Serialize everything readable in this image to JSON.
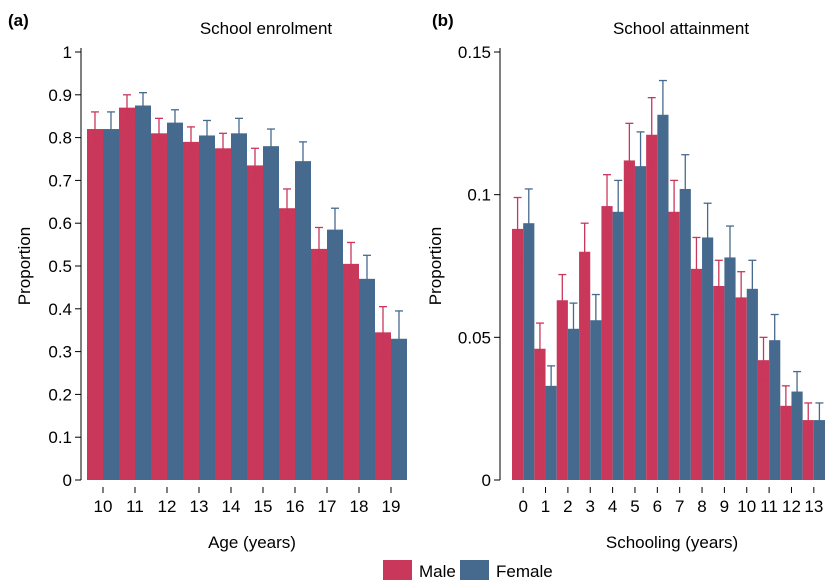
{
  "colors": {
    "male": "#c9375b",
    "female": "#466a8e",
    "axis": "#000000"
  },
  "legend": [
    {
      "name": "Male",
      "color": "#c9375b"
    },
    {
      "name": "Female",
      "color": "#466a8e"
    }
  ],
  "chart_data": [
    {
      "type": "bar",
      "panel_label": "(a)",
      "title": "School enrolment",
      "xlabel": "Age (years)",
      "ylabel": "Proportion",
      "ylim": [
        0,
        1
      ],
      "yticks": [
        "0",
        "0.1",
        "0.2",
        "0.3",
        "0.4",
        "0.5",
        "0.6",
        "0.7",
        "0.8",
        "0.9",
        "1"
      ],
      "yticks_values": [
        0,
        0.1,
        0.2,
        0.3,
        0.4,
        0.5,
        0.6,
        0.7,
        0.8,
        0.9,
        1
      ],
      "categories": [
        "10",
        "11",
        "12",
        "13",
        "14",
        "15",
        "16",
        "17",
        "18",
        "19"
      ],
      "series": [
        {
          "name": "Male",
          "values": [
            0.82,
            0.87,
            0.81,
            0.79,
            0.775,
            0.735,
            0.635,
            0.54,
            0.505,
            0.345
          ],
          "ci_low": [
            0.78,
            0.835,
            0.775,
            0.755,
            0.74,
            0.695,
            0.59,
            0.49,
            0.455,
            0.285
          ],
          "ci_high": [
            0.86,
            0.9,
            0.845,
            0.825,
            0.81,
            0.775,
            0.68,
            0.59,
            0.555,
            0.405
          ]
        },
        {
          "name": "Female",
          "values": [
            0.82,
            0.875,
            0.835,
            0.805,
            0.81,
            0.78,
            0.745,
            0.585,
            0.47,
            0.33
          ],
          "ci_low": [
            0.775,
            0.84,
            0.8,
            0.77,
            0.775,
            0.74,
            0.705,
            0.535,
            0.415,
            0.265
          ],
          "ci_high": [
            0.86,
            0.905,
            0.865,
            0.84,
            0.845,
            0.82,
            0.79,
            0.635,
            0.525,
            0.395
          ]
        }
      ]
    },
    {
      "type": "bar",
      "panel_label": "(b)",
      "title": "School attainment",
      "xlabel": "Schooling (years)",
      "ylabel": "Proportion",
      "ylim": [
        0,
        0.15
      ],
      "yticks": [
        "0",
        "0.05",
        "0.1",
        "0.15"
      ],
      "yticks_values": [
        0,
        0.05,
        0.1,
        0.15
      ],
      "categories": [
        "0",
        "1",
        "2",
        "3",
        "4",
        "5",
        "6",
        "7",
        "8",
        "9",
        "10",
        "11",
        "12",
        "13"
      ],
      "series": [
        {
          "name": "Male",
          "values": [
            0.088,
            0.046,
            0.063,
            0.08,
            0.096,
            0.112,
            0.121,
            0.094,
            0.074,
            0.068,
            0.064,
            0.042,
            0.026,
            0.021
          ],
          "ci_low": [
            0.078,
            0.038,
            0.055,
            0.071,
            0.086,
            0.101,
            0.11,
            0.084,
            0.065,
            0.06,
            0.056,
            0.035,
            0.02,
            0.016
          ],
          "ci_high": [
            0.099,
            0.055,
            0.072,
            0.09,
            0.107,
            0.125,
            0.134,
            0.105,
            0.085,
            0.077,
            0.073,
            0.05,
            0.033,
            0.027
          ]
        },
        {
          "name": "Female",
          "values": [
            0.09,
            0.033,
            0.053,
            0.056,
            0.094,
            0.11,
            0.128,
            0.102,
            0.085,
            0.078,
            0.067,
            0.049,
            0.031,
            0.021
          ],
          "ci_low": [
            0.079,
            0.027,
            0.046,
            0.048,
            0.083,
            0.098,
            0.115,
            0.091,
            0.075,
            0.069,
            0.059,
            0.042,
            0.025,
            0.016
          ],
          "ci_high": [
            0.102,
            0.04,
            0.062,
            0.065,
            0.105,
            0.122,
            0.14,
            0.114,
            0.097,
            0.089,
            0.077,
            0.058,
            0.038,
            0.027
          ]
        }
      ]
    }
  ]
}
